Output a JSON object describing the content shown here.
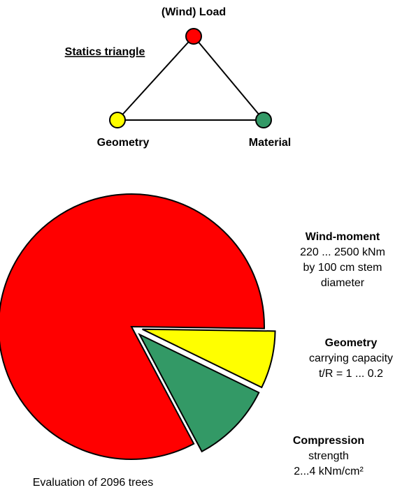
{
  "triangle": {
    "title": "Statics triangle",
    "nodes": [
      {
        "label": "(Wind) Load",
        "color": "#ff0000"
      },
      {
        "label": "Geometry",
        "color": "#ffff00"
      },
      {
        "label": "Material",
        "color": "#339966"
      }
    ]
  },
  "chart_data": {
    "type": "pie",
    "categories": [
      "Wind-moment",
      "Geometry",
      "Compression"
    ],
    "values": [
      83,
      7,
      10
    ],
    "colors": [
      "#ff0000",
      "#ffff00",
      "#339966"
    ],
    "descriptions": [
      [
        "220 ... 2500 kNm",
        "by 100 cm stem",
        "diameter"
      ],
      [
        "carrying capacity",
        "t/R = 1 ... 0.2"
      ],
      [
        "strength",
        "2...4 kNm/cm²"
      ]
    ],
    "caption": "Evaluation of 2096 trees"
  }
}
